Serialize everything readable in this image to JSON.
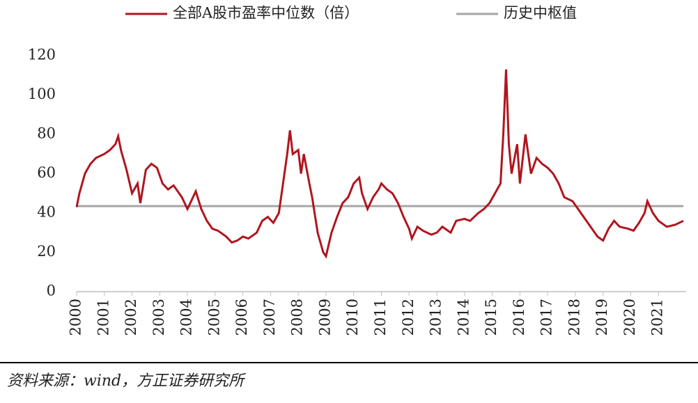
{
  "chart_data": {
    "type": "line",
    "source": "资料来源：wind，方正证券研究所",
    "xlim": [
      2000,
      2022
    ],
    "xticks": [
      2000,
      2001,
      2002,
      2003,
      2004,
      2005,
      2006,
      2007,
      2008,
      2009,
      2010,
      2011,
      2012,
      2013,
      2014,
      2015,
      2016,
      2017,
      2018,
      2019,
      2020,
      2021
    ],
    "ylim": [
      0,
      120
    ],
    "yticks": [
      0,
      20,
      40,
      60,
      80,
      100,
      120
    ],
    "legend": "top",
    "series": [
      {
        "name": "全部A股市盈率中位数（倍）",
        "color": "#b0151e",
        "x": [
          2000.0,
          2000.1,
          2000.3,
          2000.5,
          2000.7,
          2001.0,
          2001.2,
          2001.4,
          2001.5,
          2001.6,
          2001.8,
          2002.0,
          2002.2,
          2002.3,
          2002.5,
          2002.7,
          2002.9,
          2003.1,
          2003.3,
          2003.5,
          2003.8,
          2004.0,
          2004.2,
          2004.3,
          2004.5,
          2004.7,
          2004.9,
          2005.1,
          2005.4,
          2005.6,
          2005.8,
          2006.0,
          2006.2,
          2006.5,
          2006.7,
          2006.9,
          2007.1,
          2007.3,
          2007.5,
          2007.6,
          2007.7,
          2007.8,
          2008.0,
          2008.1,
          2008.2,
          2008.4,
          2008.5,
          2008.7,
          2008.9,
          2009.0,
          2009.2,
          2009.4,
          2009.6,
          2009.8,
          2010.0,
          2010.2,
          2010.3,
          2010.5,
          2010.7,
          2010.9,
          2011.0,
          2011.2,
          2011.4,
          2011.6,
          2011.8,
          2012.0,
          2012.1,
          2012.3,
          2012.5,
          2012.8,
          2013.0,
          2013.2,
          2013.5,
          2013.7,
          2014.0,
          2014.2,
          2014.5,
          2014.7,
          2014.9,
          2015.1,
          2015.3,
          2015.4,
          2015.5,
          2015.6,
          2015.7,
          2015.9,
          2016.0,
          2016.2,
          2016.4,
          2016.6,
          2016.8,
          2017.0,
          2017.2,
          2017.4,
          2017.6,
          2017.9,
          2018.1,
          2018.3,
          2018.6,
          2018.8,
          2019.0,
          2019.2,
          2019.4,
          2019.6,
          2019.9,
          2020.1,
          2020.3,
          2020.5,
          2020.6,
          2020.8,
          2021.0,
          2021.3,
          2021.6,
          2021.9
        ],
        "values": [
          43,
          50,
          60,
          65,
          68,
          70,
          72,
          75,
          79,
          72,
          62,
          50,
          55,
          45,
          62,
          65,
          63,
          55,
          52,
          54,
          48,
          42,
          48,
          51,
          42,
          36,
          32,
          31,
          28,
          25,
          26,
          28,
          27,
          30,
          36,
          38,
          35,
          40,
          60,
          70,
          82,
          70,
          72,
          60,
          70,
          55,
          48,
          30,
          20,
          18,
          30,
          38,
          45,
          48,
          55,
          58,
          50,
          42,
          48,
          52,
          55,
          52,
          50,
          45,
          38,
          32,
          27,
          33,
          31,
          29,
          30,
          33,
          30,
          36,
          37,
          36,
          40,
          42,
          45,
          50,
          55,
          80,
          113,
          75,
          60,
          75,
          55,
          80,
          60,
          68,
          65,
          63,
          60,
          55,
          48,
          46,
          42,
          38,
          32,
          28,
          26,
          32,
          36,
          33,
          32,
          31,
          35,
          40,
          46,
          40,
          36,
          33,
          34,
          36
        ]
      },
      {
        "name": "历史中枢值",
        "color": "#a6a6a6",
        "x": [
          2000.0,
          2021.9
        ],
        "values": [
          43.5,
          43.5
        ]
      }
    ]
  }
}
